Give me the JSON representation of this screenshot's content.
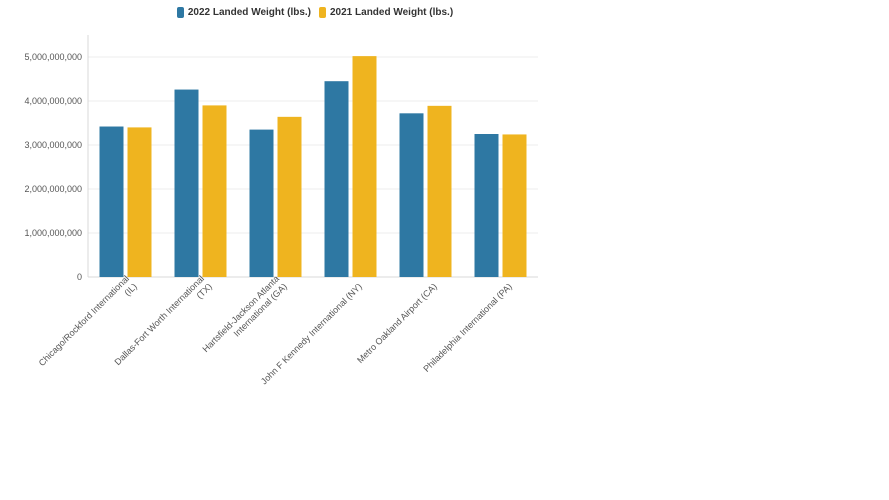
{
  "chart_data": {
    "type": "bar",
    "title": "",
    "xlabel": "",
    "ylabel": "",
    "categories": [
      [
        "Chicago/Rockford International",
        "(IL)"
      ],
      [
        "Dallas-Fort Worth International",
        "(TX)"
      ],
      [
        "Hartsfield-Jackson Atlanta",
        "International (GA)"
      ],
      [
        "John F Kennedy International (NY)"
      ],
      [
        "Metro Oakland Airport (CA)"
      ],
      [
        "Philadelphia International (PA)"
      ]
    ],
    "series": [
      {
        "name": "2022 Landed Weight (lbs.)",
        "color": "#2e78a3",
        "values": [
          3420000000,
          4260000000,
          3350000000,
          4450000000,
          3720000000,
          3250000000
        ]
      },
      {
        "name": "2021 Landed Weight (lbs.)",
        "color": "#efb41f",
        "values": [
          3400000000,
          3900000000,
          3640000000,
          5020000000,
          3890000000,
          3240000000
        ]
      }
    ],
    "ylim": [
      0,
      5500000000
    ],
    "yticks": [
      0,
      1000000000,
      2000000000,
      3000000000,
      4000000000,
      5000000000
    ],
    "ytick_labels": [
      "0",
      "1,000,000,000",
      "2,000,000,000",
      "3,000,000,000",
      "4,000,000,000",
      "5,000,000,000"
    ],
    "legend_position": "top-center",
    "grid": true
  }
}
